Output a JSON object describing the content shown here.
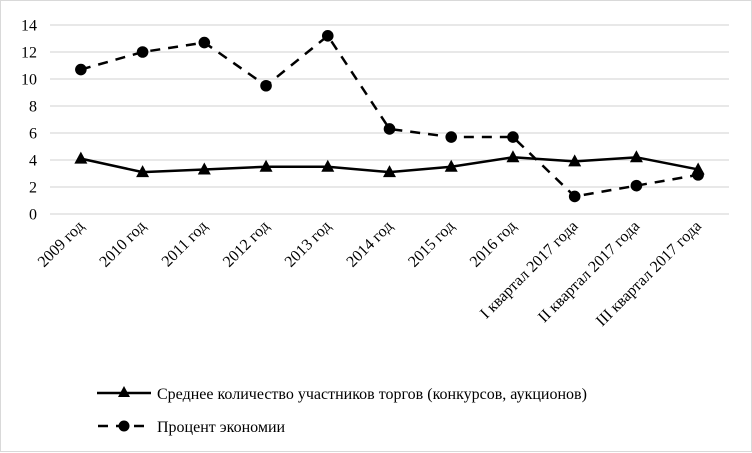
{
  "chart_data": {
    "type": "line",
    "title": "",
    "xlabel": "",
    "ylabel": "",
    "ylim": [
      0,
      14
    ],
    "yticks": [
      0,
      2,
      4,
      6,
      8,
      10,
      12,
      14
    ],
    "grid": true,
    "legend_position": "bottom",
    "categories": [
      "2009 год",
      "2010 год",
      "2011 год",
      "2012 год",
      "2013 год",
      "2014 год",
      "2015 год",
      "2016 год",
      "I квартал 2017 года",
      "II квартал 2017 года",
      "III квартал 2017 года"
    ],
    "series": [
      {
        "name": "Среднее количество участников торгов (конкурсов, аукционов)",
        "style": "solid",
        "marker": "triangle",
        "color": "#000000",
        "values": [
          4.1,
          3.1,
          3.3,
          3.5,
          3.5,
          3.1,
          3.5,
          4.2,
          3.9,
          4.2,
          3.3
        ]
      },
      {
        "name": "Процент экономии",
        "style": "dashed",
        "marker": "circle",
        "color": "#000000",
        "values": [
          10.7,
          12.0,
          12.7,
          9.5,
          13.2,
          6.3,
          5.7,
          5.7,
          1.3,
          2.1,
          2.9
        ]
      }
    ]
  },
  "colors": {
    "gridline": "#d9d9d9",
    "border": "#d9d9d9",
    "series": "#000000"
  }
}
